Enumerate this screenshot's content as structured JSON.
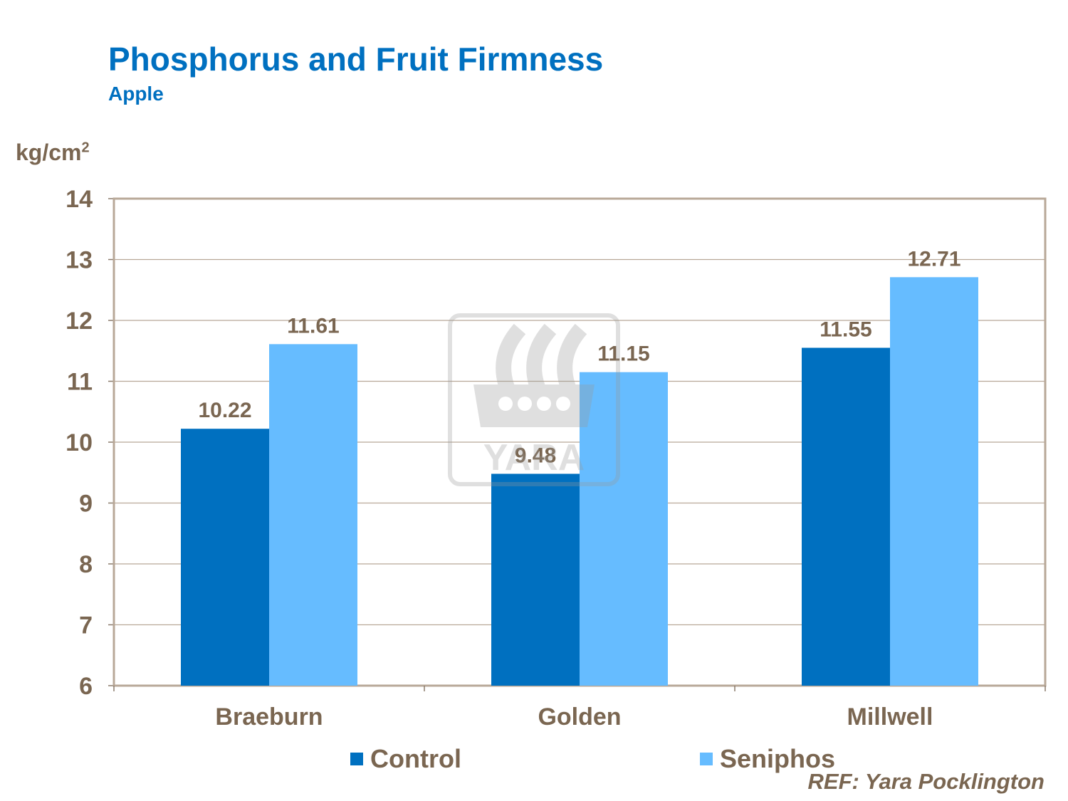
{
  "chart_data": {
    "type": "bar",
    "title": "Phosphorus and Fruit Firmness",
    "subtitle": "Apple",
    "ylabel": "kg/cm",
    "ylabel_superscript": "2",
    "categories": [
      "Braeburn",
      "Golden",
      "Millwell"
    ],
    "series": [
      {
        "name": "Control",
        "values": [
          10.22,
          9.48,
          11.55
        ],
        "color": "#0070C0"
      },
      {
        "name": "Seniphos",
        "values": [
          11.61,
          11.15,
          12.71
        ],
        "color": "#66BCFF"
      }
    ],
    "data_labels": [
      [
        "10.22",
        "9.48",
        "11.55"
      ],
      [
        "11.61",
        "11.15",
        "12.71"
      ]
    ],
    "ylim": [
      6,
      14
    ],
    "yticks": [
      "6",
      "7",
      "8",
      "9",
      "10",
      "11",
      "12",
      "13",
      "14"
    ],
    "grid": true,
    "legend_position": "bottom",
    "watermark": "YARA",
    "reference": "REF: Yara Pocklington"
  }
}
